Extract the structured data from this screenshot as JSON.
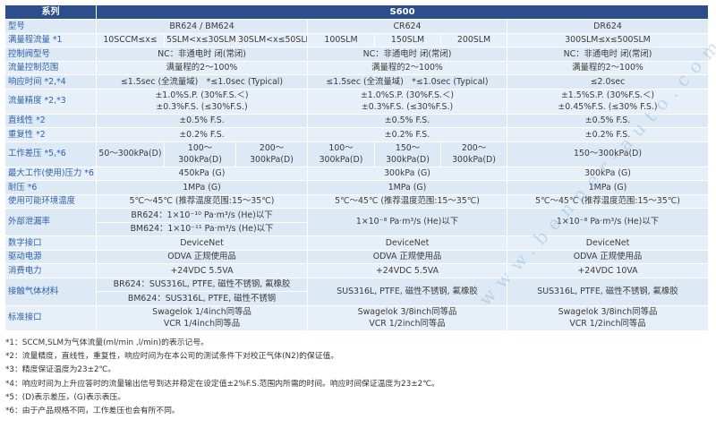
{
  "header": {
    "series_label": "系列",
    "series_value": "S600"
  },
  "rows": [
    {
      "label": "型号",
      "br": "BR624 / BM624",
      "cr": "CR624",
      "dr": "DR624"
    },
    {
      "label": "满量程流量 *1",
      "br": [
        "10SCCM≤x≤",
        "5SLM<x≤30SLM",
        "30SLM<x≤50SLM"
      ],
      "cr": [
        "100SLM",
        "150SLM",
        "200SLM"
      ],
      "dr": "300SLM≤x≤500SLM"
    },
    {
      "label": "控制阀型号",
      "br": "NC：非通电时 闭(常闭)",
      "cr": "NC：非通电时 闭(常闭)",
      "dr": "NC：非通电时 闭(常闭)"
    },
    {
      "label": "流量控制范围",
      "br": "满量程的2～100%",
      "cr": "满量程的2～100%",
      "dr": "满量程的2～100%"
    },
    {
      "label": "响应时间 *2,*4",
      "br": "≤1.5sec (全流量域)　*≤1.0sec (Typical)",
      "cr": "≤1.5sec (全流量域)　*≤1.0sec (Typical)",
      "dr": "≤2.0sec"
    },
    {
      "label": "流量精度 *2,*3",
      "br": "±1.0%S.P. (30%F.S.＜)\n±0.3%F.S. (≤30%F.S.)",
      "cr": "±1.0%S.P. (30%F.S.＜)\n±0.3%F.S. (≤30%F.S.)",
      "dr": "±1.5%S.P. (30%F.S.＜)\n±0.45%F.S. (≤30% F.S.)"
    },
    {
      "label": "直线性 *2",
      "br": "±0.5% F.S.",
      "cr": "±0.5% F.S.",
      "dr": "±0.5% F.S."
    },
    {
      "label": "重复性 *2",
      "br": "±0.2% F.S.",
      "cr": "±0.2% F.S.",
      "dr": "±0.2% F.S."
    },
    {
      "label": "工作差压 *5,*6",
      "br": [
        "50～300kPa(D)",
        "100～300kPa(D)",
        "200～300kPa(D)"
      ],
      "cr": [
        "100～300kPa(D)",
        "150～300kPa(D)",
        "200～300kPa(D)"
      ],
      "dr": "150～300kPa(D)"
    },
    {
      "label": "最大工作(使用)压力 *6",
      "br": "450kPa (G)",
      "cr": "300kPa (G)",
      "dr": "300kPa (G)"
    },
    {
      "label": "耐压 *6",
      "br": "1MPa (G)",
      "cr": "1MPa (G)",
      "dr": "1MPa (G)"
    },
    {
      "label": "使用可能环境温度",
      "br": "5℃～45℃ (推荐温度范围:15～35℃)",
      "cr": "5℃～45℃ (推荐温度范围:15～35℃)",
      "dr": "5℃～45℃ (推荐温度范围:15～35℃)"
    },
    {
      "label": "外部泄漏率",
      "br_lines": [
        "BR624：1×10⁻¹⁰ Pa·m³/s (He)以下",
        "BM624：1×10⁻¹¹ Pa·m³/s (He)以下"
      ],
      "cr": "1×10⁻⁸ Pa·m³/s (He)以下",
      "dr": "1×10⁻⁸ Pa·m³/s (He)以下"
    },
    {
      "label": "数字接口",
      "br": "DeviceNet",
      "cr": "DeviceNet",
      "dr": "DeviceNet"
    },
    {
      "label": "驱动电源",
      "br": "ODVA 正规使用品",
      "cr": "ODVA 正规使用品",
      "dr": "ODVA 正规使用品"
    },
    {
      "label": "消费电力",
      "br": "+24VDC 5.5VA",
      "cr": "+24VDC 5.5VA",
      "dr": "+24VDC 10VA"
    },
    {
      "label": "接触气体材料",
      "br_lines": [
        "BR624：SUS316L, PTFE, 磁性不锈钢, 氟橡胶",
        "BM624：SUS316L, PTFE, 磁性不锈钢"
      ],
      "cr": "SUS316L, PTFE, 磁性不锈钢, 氟橡胶",
      "dr": "SUS316L, PTFE, 磁性不锈钢, 氟橡胶"
    },
    {
      "label": "标准接口",
      "br": "Swagelok 1/4inch同等品\nVCR 1/4inch同等品",
      "cr": "Swagelok 3/8inch同等品\nVCR 1/2inch同等品",
      "dr": "Swagelok 3/8inch同等品\nVCR 1/2inch同等品"
    }
  ],
  "notes": [
    "*1：SCCM,SLM为气体流量(ml/min ,l/min)的表示记号。",
    "*2：流量精度，直线性，重复性，响应时间为在本公司的测试条件下对校正气体(N2)的保证值。",
    "*3：精度保证温度为23±2℃。",
    "*4：响应时间为上升应答时的流量输出信号到达并稳定在设定值±2%F.S.范围内所需的时间。响应时间保证温度为23±2℃。",
    "*5：(D)表示差压，(G)表示表压。",
    "*6：由于产品规格不同，工作差压也会有所不同。"
  ],
  "watermark": "www.benner-auto.com",
  "colors": {
    "header_bg": "#2c4f8c",
    "cell_bg": "#dde9f5",
    "label_text": "#2d62a8"
  }
}
